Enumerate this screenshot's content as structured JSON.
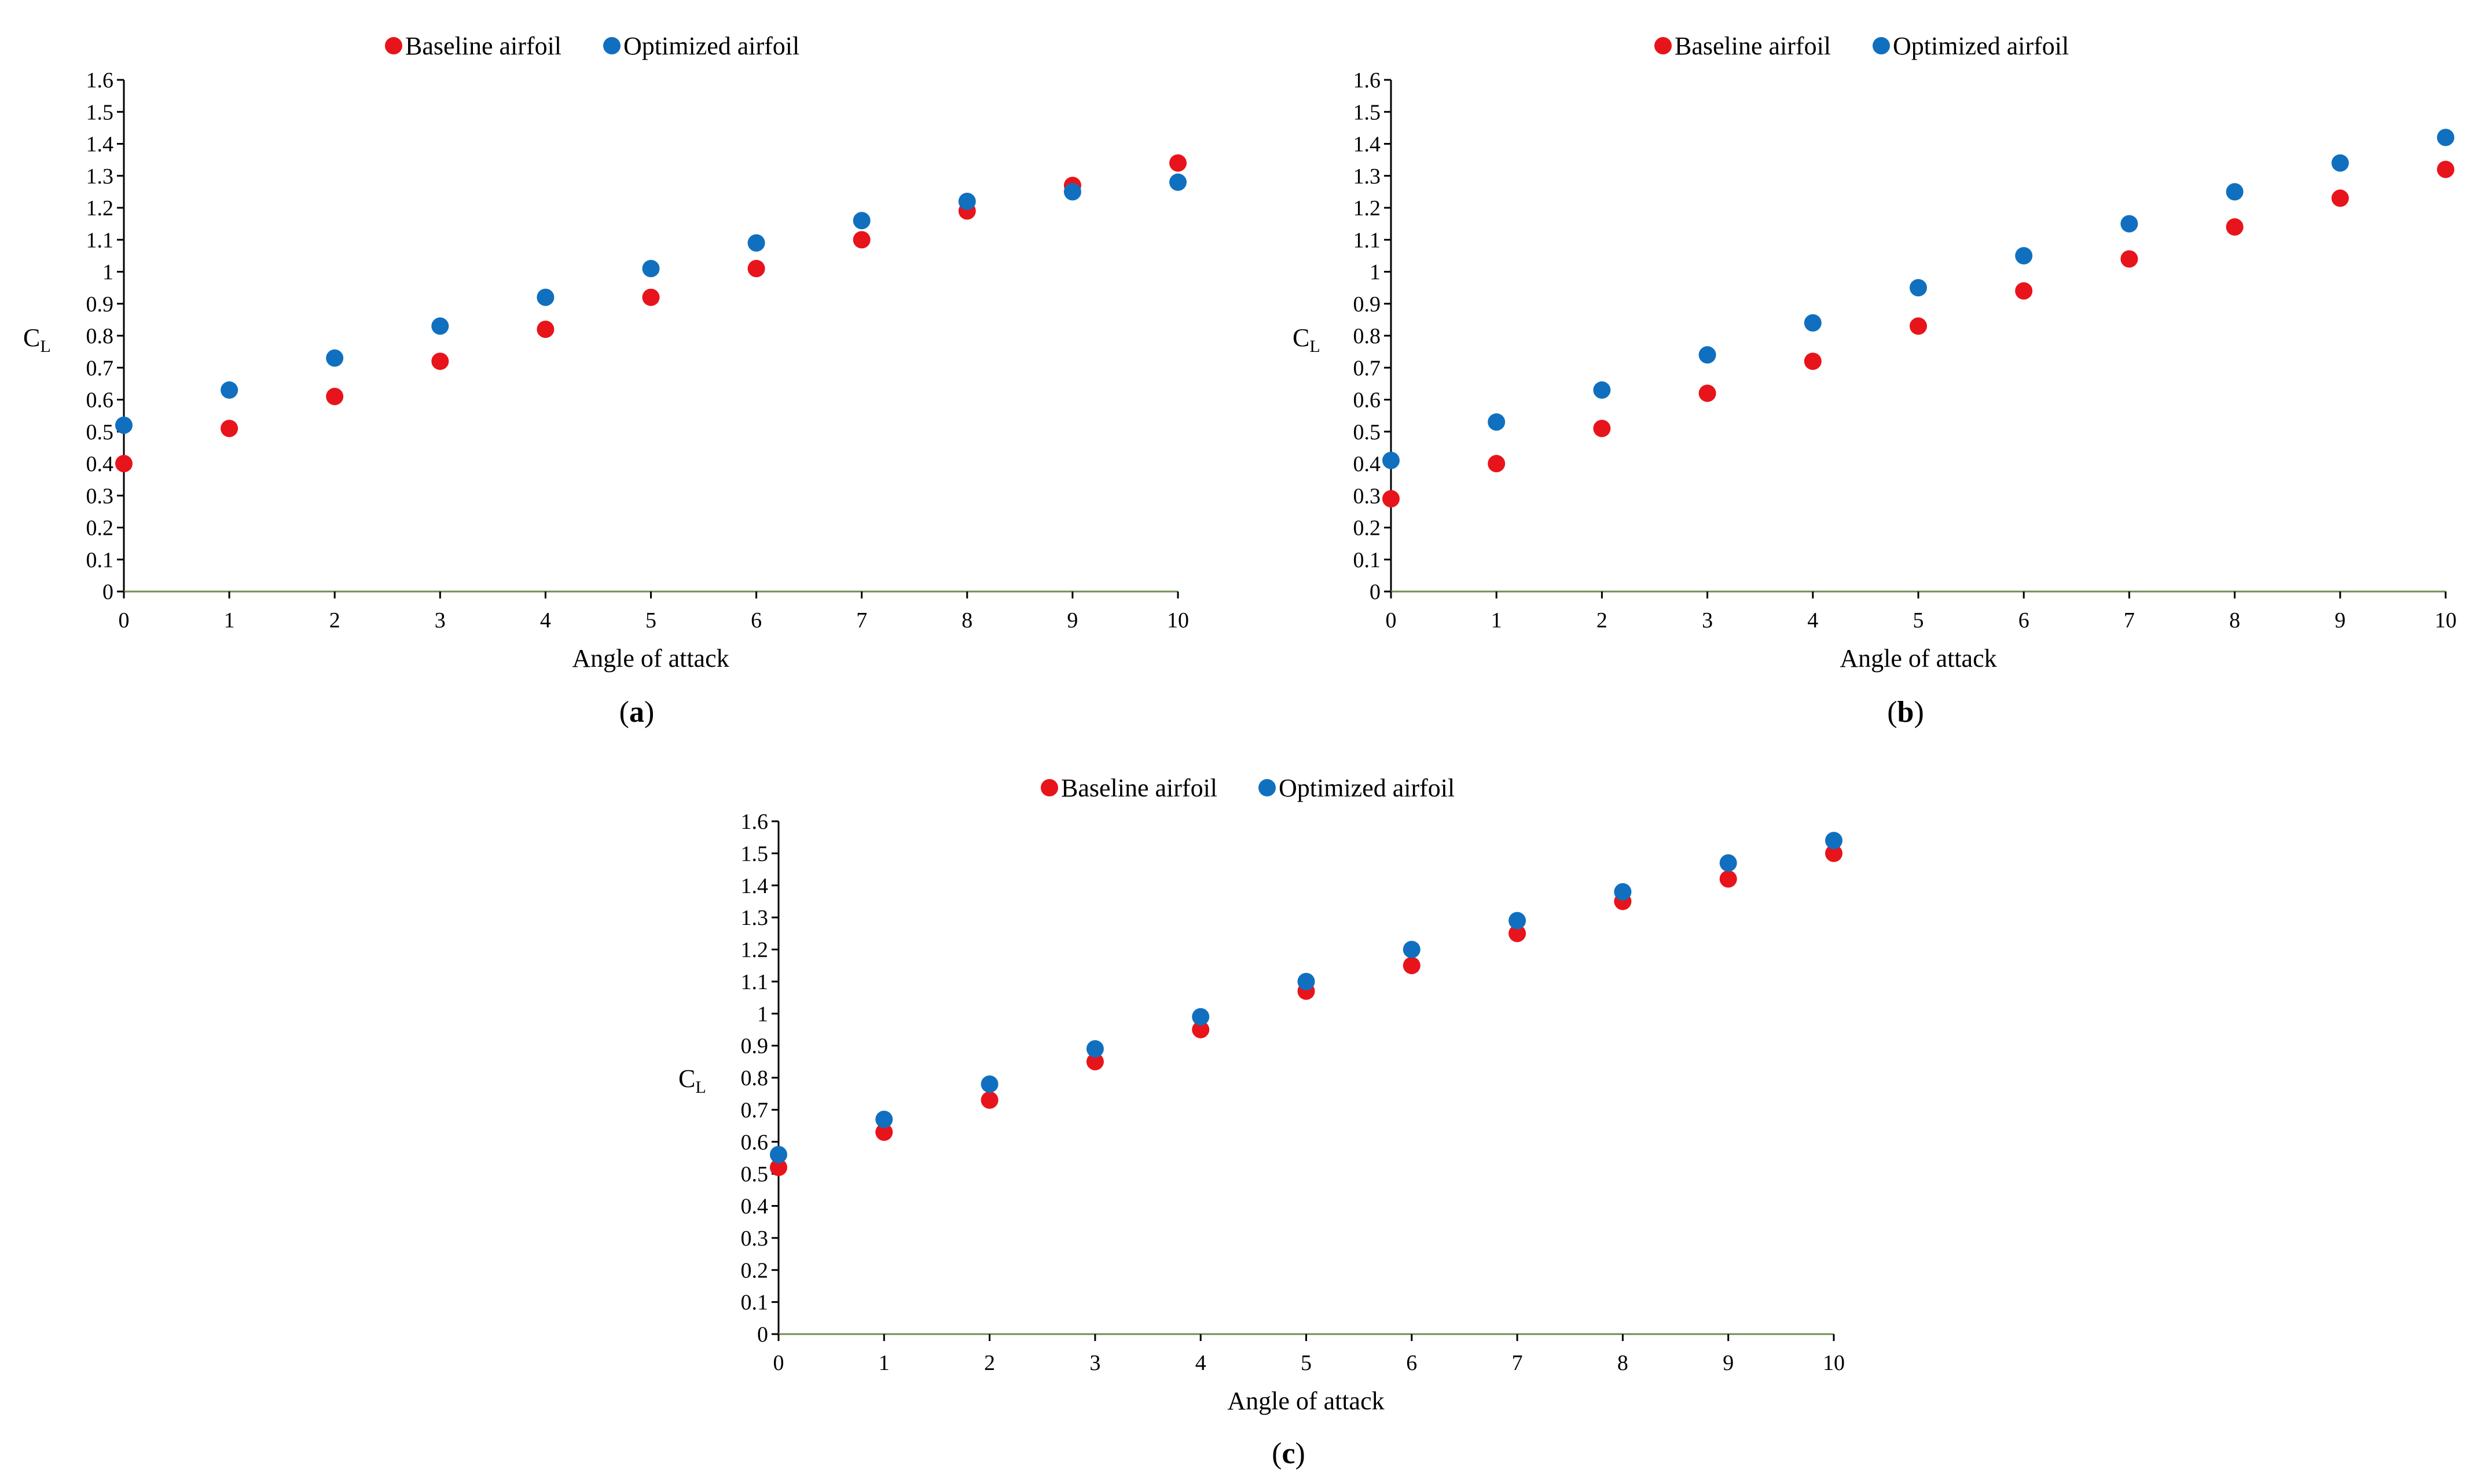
{
  "colors": {
    "baseline": "#e8141b",
    "optimized": "#1070bf",
    "x_axis": "#6f8f55",
    "axis": "#000000"
  },
  "charts": [
    {
      "panel_label": "a",
      "legend": [
        "Baseline airfoil",
        "Optimized airfoil"
      ],
      "xlabel": "Angle of attack",
      "ylabel_main": "C",
      "ylabel_sub": "L"
    },
    {
      "panel_label": "b",
      "legend": [
        "Baseline airfoil",
        "Optimized airfoil"
      ],
      "xlabel": "Angle of attack",
      "ylabel_main": "C",
      "ylabel_sub": "L"
    },
    {
      "panel_label": "c",
      "legend": [
        "Baseline airfoil",
        "Optimized airfoil"
      ],
      "xlabel": "Angle of attack",
      "ylabel_main": "C",
      "ylabel_sub": "L"
    }
  ],
  "chart_data": [
    {
      "type": "scatter",
      "title": "(a)",
      "xlabel": "Angle of attack",
      "ylabel": "CL",
      "xlim": [
        0,
        10
      ],
      "ylim": [
        0,
        1.6
      ],
      "x_ticks": [
        "0",
        "1",
        "2",
        "3",
        "4",
        "5",
        "6",
        "7",
        "8",
        "9",
        "10"
      ],
      "y_ticks": [
        "0",
        "0.1",
        "0.2",
        "0.3",
        "0.4",
        "0.5",
        "0.6",
        "0.7",
        "0.8",
        "0.9",
        "1",
        "1.1",
        "1.2",
        "1.3",
        "1.4",
        "1.5",
        "1.6"
      ],
      "legend_position": "top",
      "x": [
        0,
        1,
        2,
        3,
        4,
        5,
        6,
        7,
        8,
        9,
        10
      ],
      "series": [
        {
          "name": "Baseline airfoil",
          "values": [
            0.4,
            0.51,
            0.61,
            0.72,
            0.82,
            0.92,
            1.01,
            1.1,
            1.19,
            1.27,
            1.34
          ]
        },
        {
          "name": "Optimized airfoil",
          "values": [
            0.52,
            0.63,
            0.73,
            0.83,
            0.92,
            1.01,
            1.09,
            1.16,
            1.22,
            1.25,
            1.28
          ]
        }
      ]
    },
    {
      "type": "scatter",
      "title": "(b)",
      "xlabel": "Angle of attack",
      "ylabel": "CL",
      "xlim": [
        0,
        10
      ],
      "ylim": [
        0,
        1.6
      ],
      "x_ticks": [
        "0",
        "1",
        "2",
        "3",
        "4",
        "5",
        "6",
        "7",
        "8",
        "9",
        "10"
      ],
      "y_ticks": [
        "0",
        "0.1",
        "0.2",
        "0.3",
        "0.4",
        "0.5",
        "0.6",
        "0.7",
        "0.8",
        "0.9",
        "1",
        "1.1",
        "1.2",
        "1.3",
        "1.4",
        "1.5",
        "1.6"
      ],
      "legend_position": "top",
      "x": [
        0,
        1,
        2,
        3,
        4,
        5,
        6,
        7,
        8,
        9,
        10
      ],
      "series": [
        {
          "name": "Baseline airfoil",
          "values": [
            0.29,
            0.4,
            0.51,
            0.62,
            0.72,
            0.83,
            0.94,
            1.04,
            1.14,
            1.23,
            1.32
          ]
        },
        {
          "name": "Optimized airfoil",
          "values": [
            0.41,
            0.53,
            0.63,
            0.74,
            0.84,
            0.95,
            1.05,
            1.15,
            1.25,
            1.34,
            1.42
          ]
        }
      ]
    },
    {
      "type": "scatter",
      "title": "(c)",
      "xlabel": "Angle of attack",
      "ylabel": "CL",
      "xlim": [
        0,
        10
      ],
      "ylim": [
        0,
        1.6
      ],
      "x_ticks": [
        "0",
        "1",
        "2",
        "3",
        "4",
        "5",
        "6",
        "7",
        "8",
        "9",
        "10"
      ],
      "y_ticks": [
        "0",
        "0.1",
        "0.2",
        "0.3",
        "0.4",
        "0.5",
        "0.6",
        "0.7",
        "0.8",
        "0.9",
        "1",
        "1.1",
        "1.2",
        "1.3",
        "1.4",
        "1.5",
        "1.6"
      ],
      "legend_position": "top",
      "x": [
        0,
        1,
        2,
        3,
        4,
        5,
        6,
        7,
        8,
        9,
        10
      ],
      "series": [
        {
          "name": "Baseline airfoil",
          "values": [
            0.52,
            0.63,
            0.73,
            0.85,
            0.95,
            1.07,
            1.15,
            1.25,
            1.35,
            1.42,
            1.5
          ]
        },
        {
          "name": "Optimized airfoil",
          "values": [
            0.56,
            0.67,
            0.78,
            0.89,
            0.99,
            1.1,
            1.2,
            1.29,
            1.38,
            1.47,
            1.54
          ]
        }
      ]
    }
  ]
}
